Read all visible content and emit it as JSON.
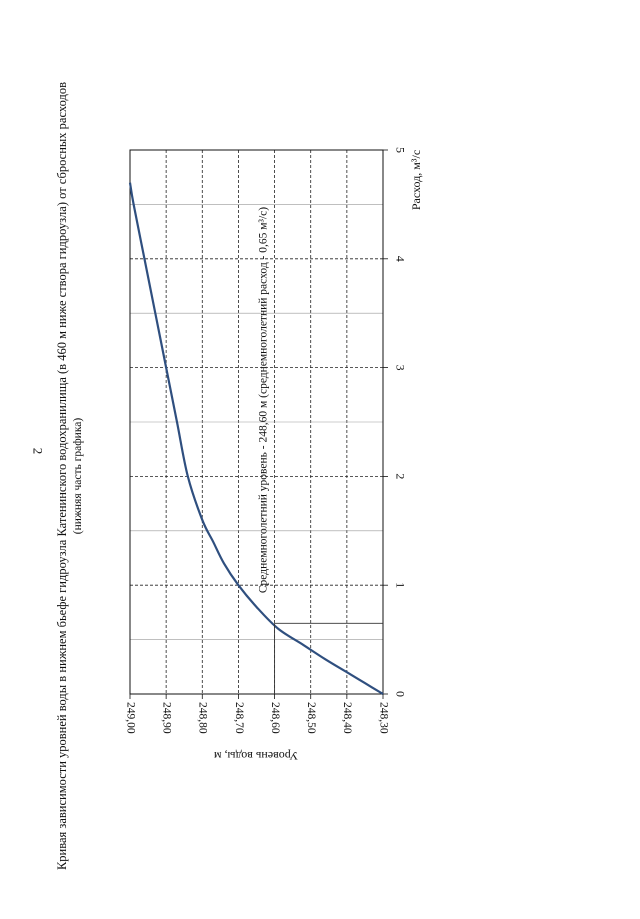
{
  "page": {
    "number": "2"
  },
  "chart_data": {
    "type": "line",
    "title": "Кривая зависимости уровней воды в нижнем бьефе гидроузла Катенинского водохранилища (в 460 м ниже створа гидроузла) от сбросных расходов",
    "subtitle": "(нижняя часть графика)",
    "xlabel": "Расход, м³/с",
    "ylabel": "Уровень воды, м",
    "xlim": [
      0,
      5
    ],
    "ylim": [
      248.3,
      249.0
    ],
    "x_ticks": [
      "0",
      "1",
      "2",
      "3",
      "4",
      "5"
    ],
    "y_ticks": [
      "248,30",
      "248,40",
      "248,50",
      "248,60",
      "248,70",
      "248,80",
      "248,90",
      "249,00"
    ],
    "grid": true,
    "color": "#2f4f7f",
    "series": [
      {
        "x": [
          0.0,
          0.1,
          0.2,
          0.32,
          0.45,
          0.6,
          0.8,
          1.0,
          1.2,
          1.4,
          1.6,
          2.0,
          2.5,
          3.0,
          3.5,
          4.0,
          4.5,
          4.7
        ],
        "y": [
          248.3,
          248.35,
          248.4,
          248.46,
          248.52,
          248.59,
          248.65,
          248.7,
          248.74,
          248.77,
          248.8,
          248.84,
          248.87,
          248.9,
          248.93,
          248.96,
          248.99,
          249.0
        ]
      }
    ],
    "annotation": {
      "text": "Среднемноголетний уровень - 248,60 м (среднемноголетний расход - 0,65 м³/с)",
      "x": 0.65,
      "y": 248.6
    }
  }
}
